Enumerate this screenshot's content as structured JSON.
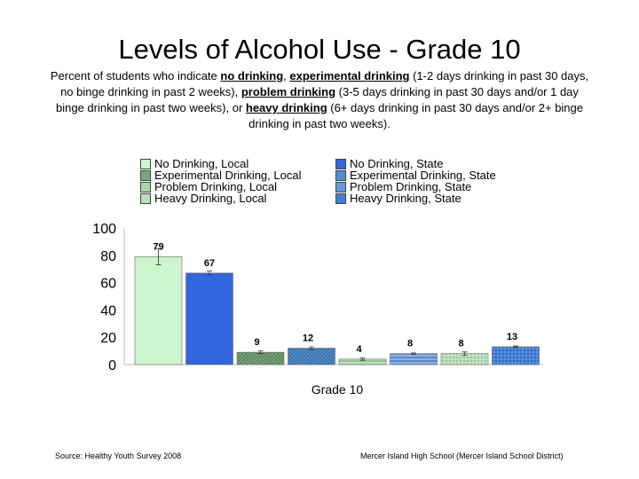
{
  "title": "Levels of Alcohol Use - Grade 10",
  "subtitle": {
    "p1": "Percent of students who indicate ",
    "no_drinking": "no drinking",
    "p2": ", ",
    "experimental": "experimental drinking",
    "p3": " (1-2 days drinking in past 30 days, no binge drinking in past 2 weeks), ",
    "problem": "problem drinking",
    "p4": " (3-5 days drinking in past 30 days and/or 1 day binge drinking in past two weeks), or ",
    "heavy": "heavy drinking",
    "p5": " (6+ days drinking in past 30 days and/or 2+ binge drinking in past two weeks)."
  },
  "footer": {
    "source": "Source: Healthy Youth Survey 2008",
    "school": "Mercer Island High School (Mercer Island School District)"
  },
  "chart_data": {
    "type": "bar",
    "xlabel": "Grade  10",
    "ylabel": "",
    "ylim": [
      0,
      100
    ],
    "yticks": [
      0,
      20,
      40,
      60,
      80,
      100
    ],
    "grid": false,
    "legend_position": "top",
    "series": [
      {
        "name": "No Drinking, Local",
        "value": 79,
        "color": "#ccf5cc",
        "pattern": "solid"
      },
      {
        "name": "No Drinking, State",
        "value": 67,
        "color": "#3366dd",
        "pattern": "solid"
      },
      {
        "name": "Experimental Drinking, Local",
        "value": 9,
        "color": "#7aa87a",
        "pattern": "diagonal"
      },
      {
        "name": "Experimental Drinking, State",
        "value": 12,
        "color": "#4d90d0",
        "pattern": "diagonal"
      },
      {
        "name": "Problem Drinking, Local",
        "value": 4,
        "color": "#a8d8a8",
        "pattern": "horizontal"
      },
      {
        "name": "Problem Drinking, State",
        "value": 8,
        "color": "#6699dd",
        "pattern": "horizontal"
      },
      {
        "name": "Heavy Drinking, Local",
        "value": 8,
        "color": "#b8e0b8",
        "pattern": "dots"
      },
      {
        "name": "Heavy Drinking, State",
        "value": 13,
        "color": "#3f7fd8",
        "pattern": "dots"
      }
    ],
    "error_margins": [
      6,
      1.5,
      1,
      1,
      0.8,
      0.5,
      1.2,
      0.6
    ]
  }
}
